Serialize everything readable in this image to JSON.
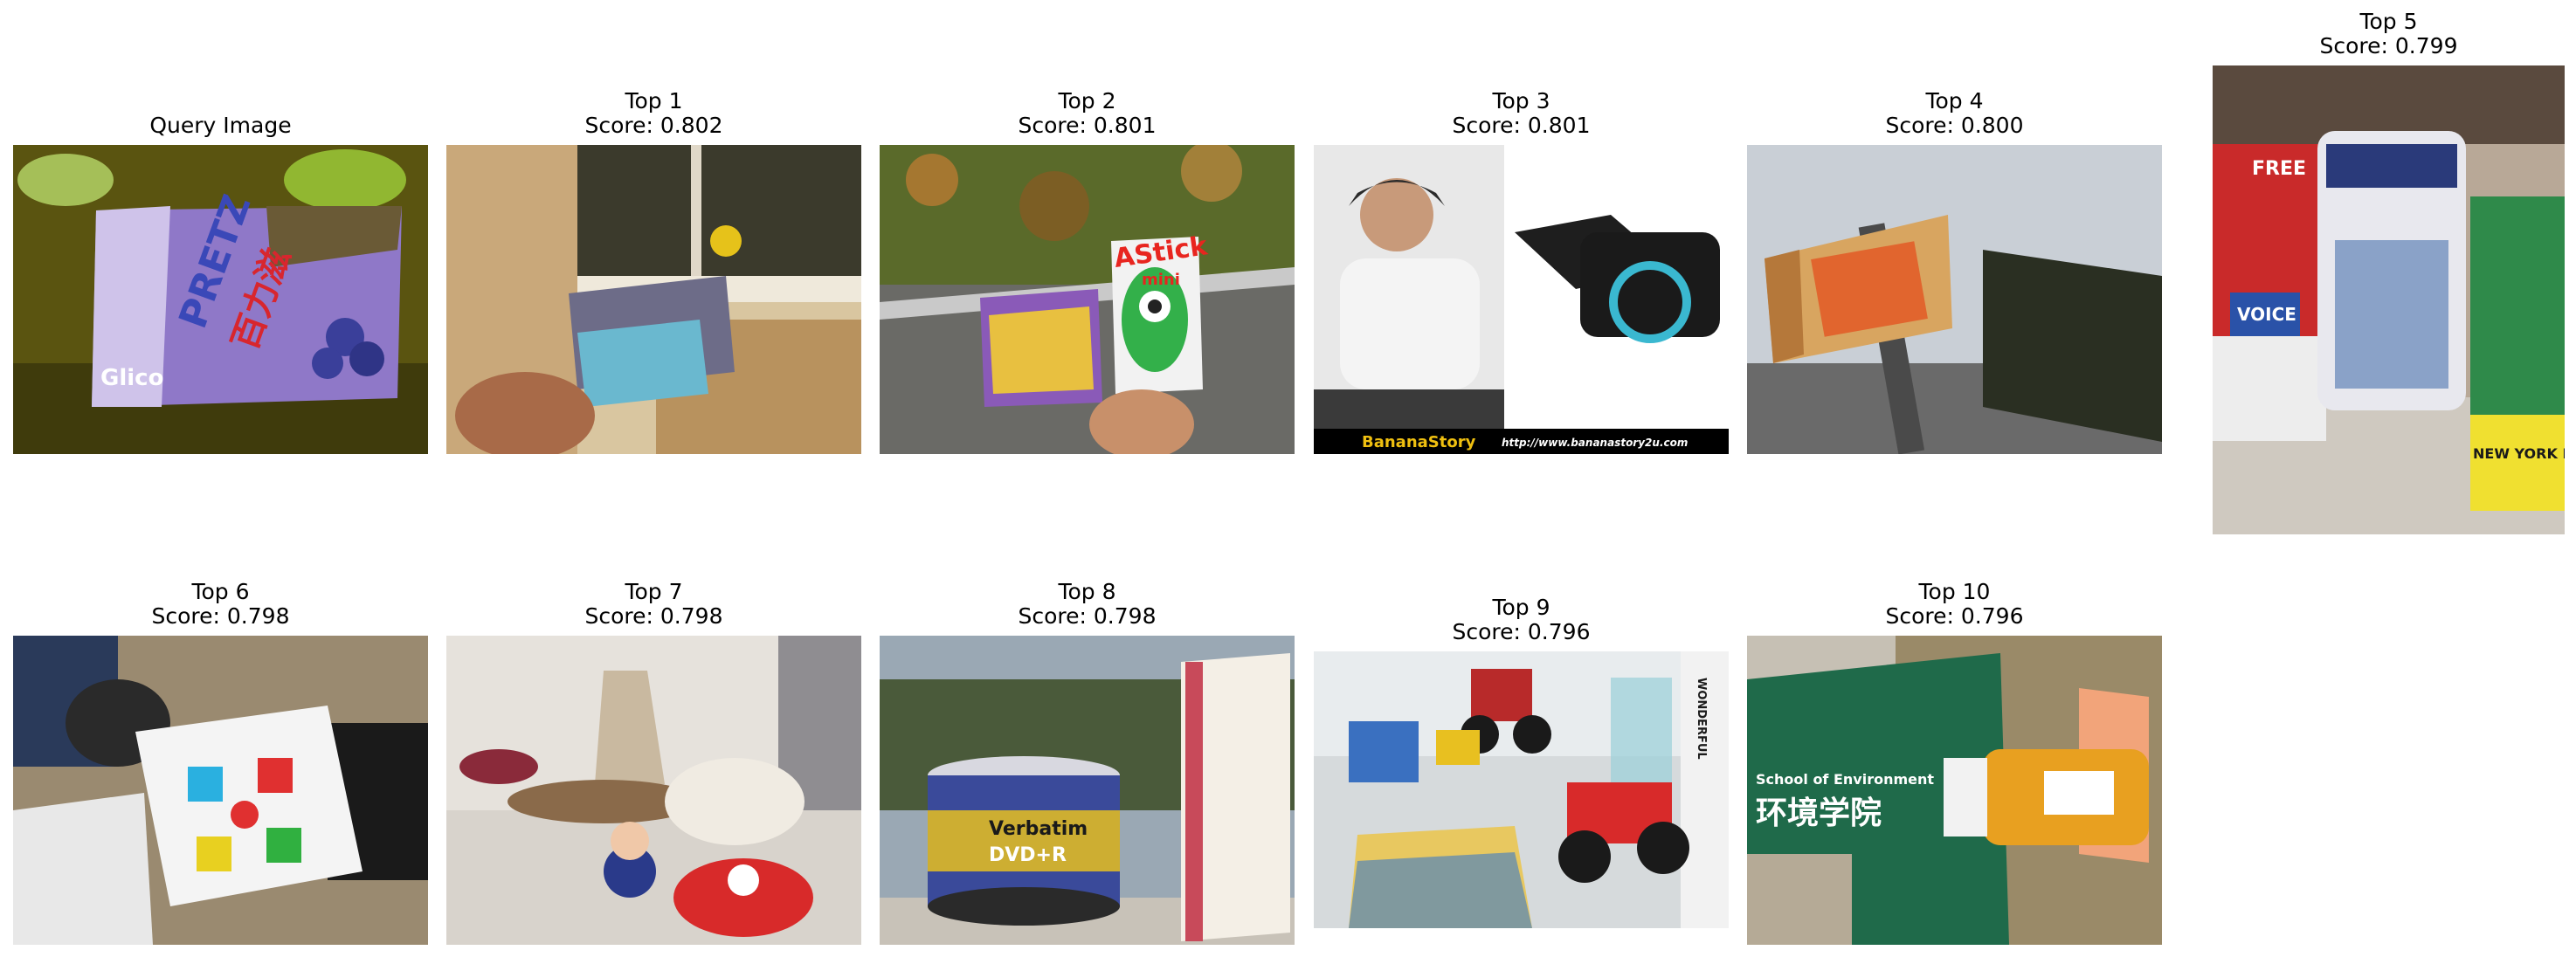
{
  "query": {
    "title": "Query Image"
  },
  "results": [
    {
      "rank": "Top 1",
      "score": "Score: 0.802"
    },
    {
      "rank": "Top 2",
      "score": "Score: 0.801"
    },
    {
      "rank": "Top 3",
      "score": "Score: 0.801"
    },
    {
      "rank": "Top 4",
      "score": "Score: 0.800"
    },
    {
      "rank": "Top 5",
      "score": "Score: 0.799"
    },
    {
      "rank": "Top 6",
      "score": "Score: 0.798"
    },
    {
      "rank": "Top 7",
      "score": "Score: 0.798"
    },
    {
      "rank": "Top 8",
      "score": "Score: 0.798"
    },
    {
      "rank": "Top 9",
      "score": "Score: 0.796"
    },
    {
      "rank": "Top 10",
      "score": "Score: 0.796"
    }
  ],
  "photo_text": {
    "pretz": "PRETZ",
    "pretz_cn": "百力滋",
    "glico": "Glico",
    "astick": "AStick",
    "astick_sub": "mini",
    "banana": "BananaStory",
    "banana_url": "http://www.bananastory2u.com",
    "free": "FREE",
    "voice": "VOICE",
    "ny_press": "NEW YORK PRESS",
    "verbatim": "Verbatim",
    "dvdr": "DVD+R",
    "wonderful": "WONDERFUL",
    "school": "School of Environment",
    "school_cn": "环境学院"
  }
}
